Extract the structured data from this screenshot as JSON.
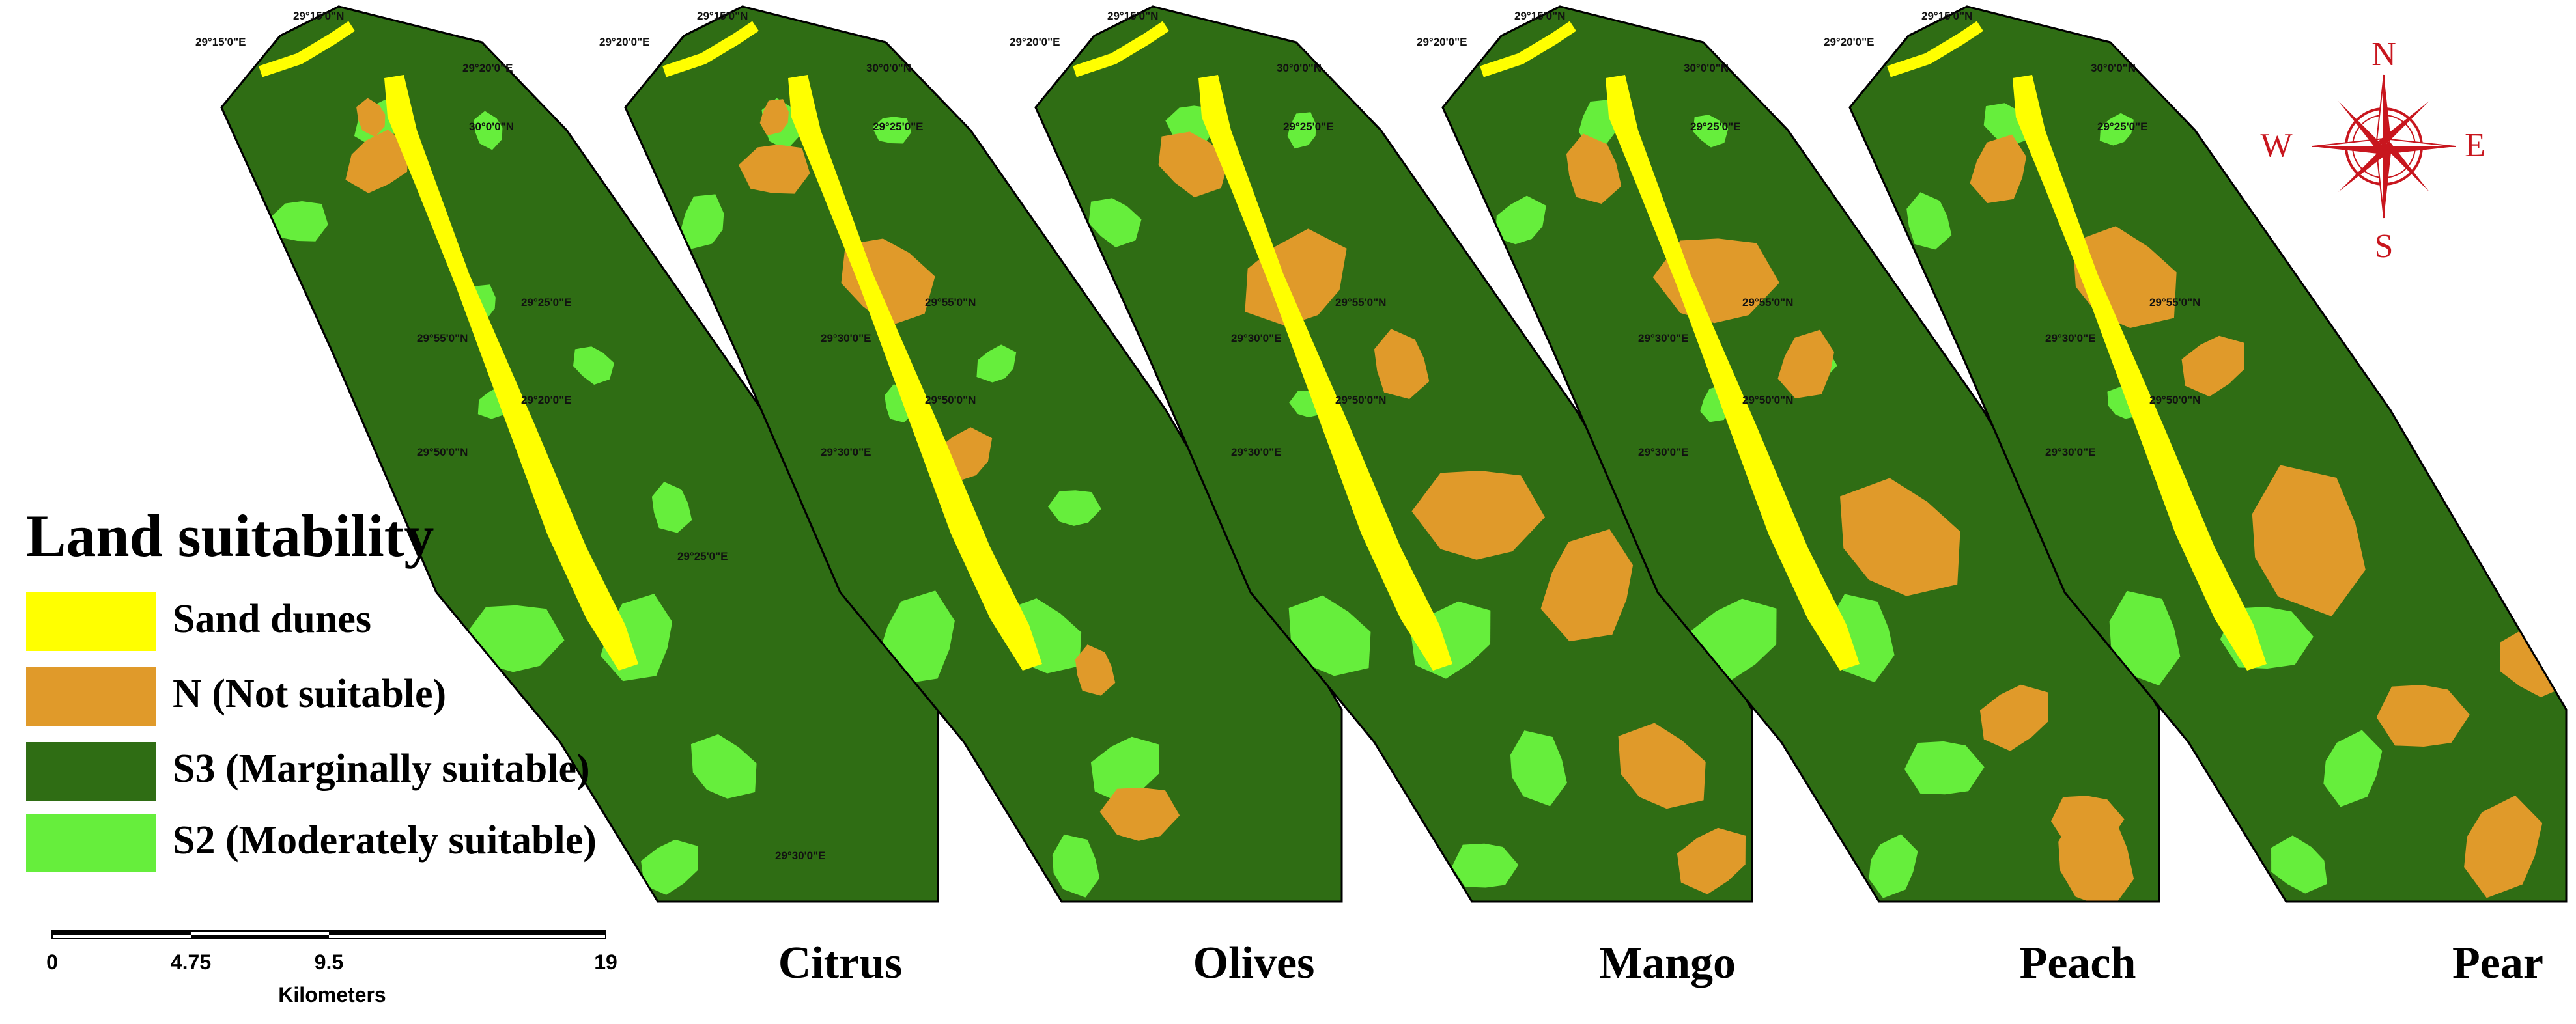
{
  "legend": {
    "title": "Land suitability",
    "items": [
      {
        "label": "Sand dunes",
        "color": "#ffff00"
      },
      {
        "label": "N (Not suitable)",
        "color": "#e09a2a"
      },
      {
        "label": "S3 (Marginally suitable)",
        "color": "#2f6d14"
      },
      {
        "label": "S2 (Moderately suitable)",
        "color": "#66ee3c"
      }
    ]
  },
  "scale_bar": {
    "ticks": [
      "0",
      "4.75",
      "9.5",
      "19"
    ],
    "unit": "Kilometers"
  },
  "compass": {
    "N": "N",
    "S": "S",
    "E": "E",
    "W": "W",
    "color": "#c8161e"
  },
  "maps": [
    {
      "crop": "Citrus",
      "coords": [
        "29°15'0\"N",
        "29°15'0\"E",
        "29°20'0\"E",
        "30°0'0\"N",
        "29°25'0\"E",
        "29°55'0\"N",
        "29°20'0\"E",
        "29°50'0\"N",
        "29°25'0\"E",
        "29°30'0\"E"
      ]
    },
    {
      "crop": "Olives",
      "coords": [
        "29°15'0\"N",
        "29°20'0\"E",
        "30°0'0\"N",
        "29°25'0\"E",
        "29°55'0\"N",
        "29°30'0\"E",
        "29°50'0\"N",
        "29°30'0\"E"
      ]
    },
    {
      "crop": "Mango",
      "coords": [
        "29°15'0\"N",
        "29°20'0\"E",
        "30°0'0\"N",
        "29°25'0\"E",
        "29°55'0\"N",
        "29°30'0\"E",
        "29°50'0\"N",
        "29°30'0\"E"
      ]
    },
    {
      "crop": "Peach",
      "coords": [
        "29°15'0\"N",
        "29°20'0\"E",
        "30°0'0\"N",
        "29°25'0\"E",
        "29°55'0\"N",
        "29°30'0\"E",
        "29°50'0\"N",
        "29°30'0\"E"
      ]
    },
    {
      "crop": "Pear",
      "coords": [
        "29°15'0\"N",
        "29°20'0\"E",
        "30°0'0\"N",
        "29°25'0\"E",
        "29°55'0\"N",
        "29°30'0\"E",
        "29°50'0\"N",
        "29°30'0\"E"
      ]
    }
  ]
}
